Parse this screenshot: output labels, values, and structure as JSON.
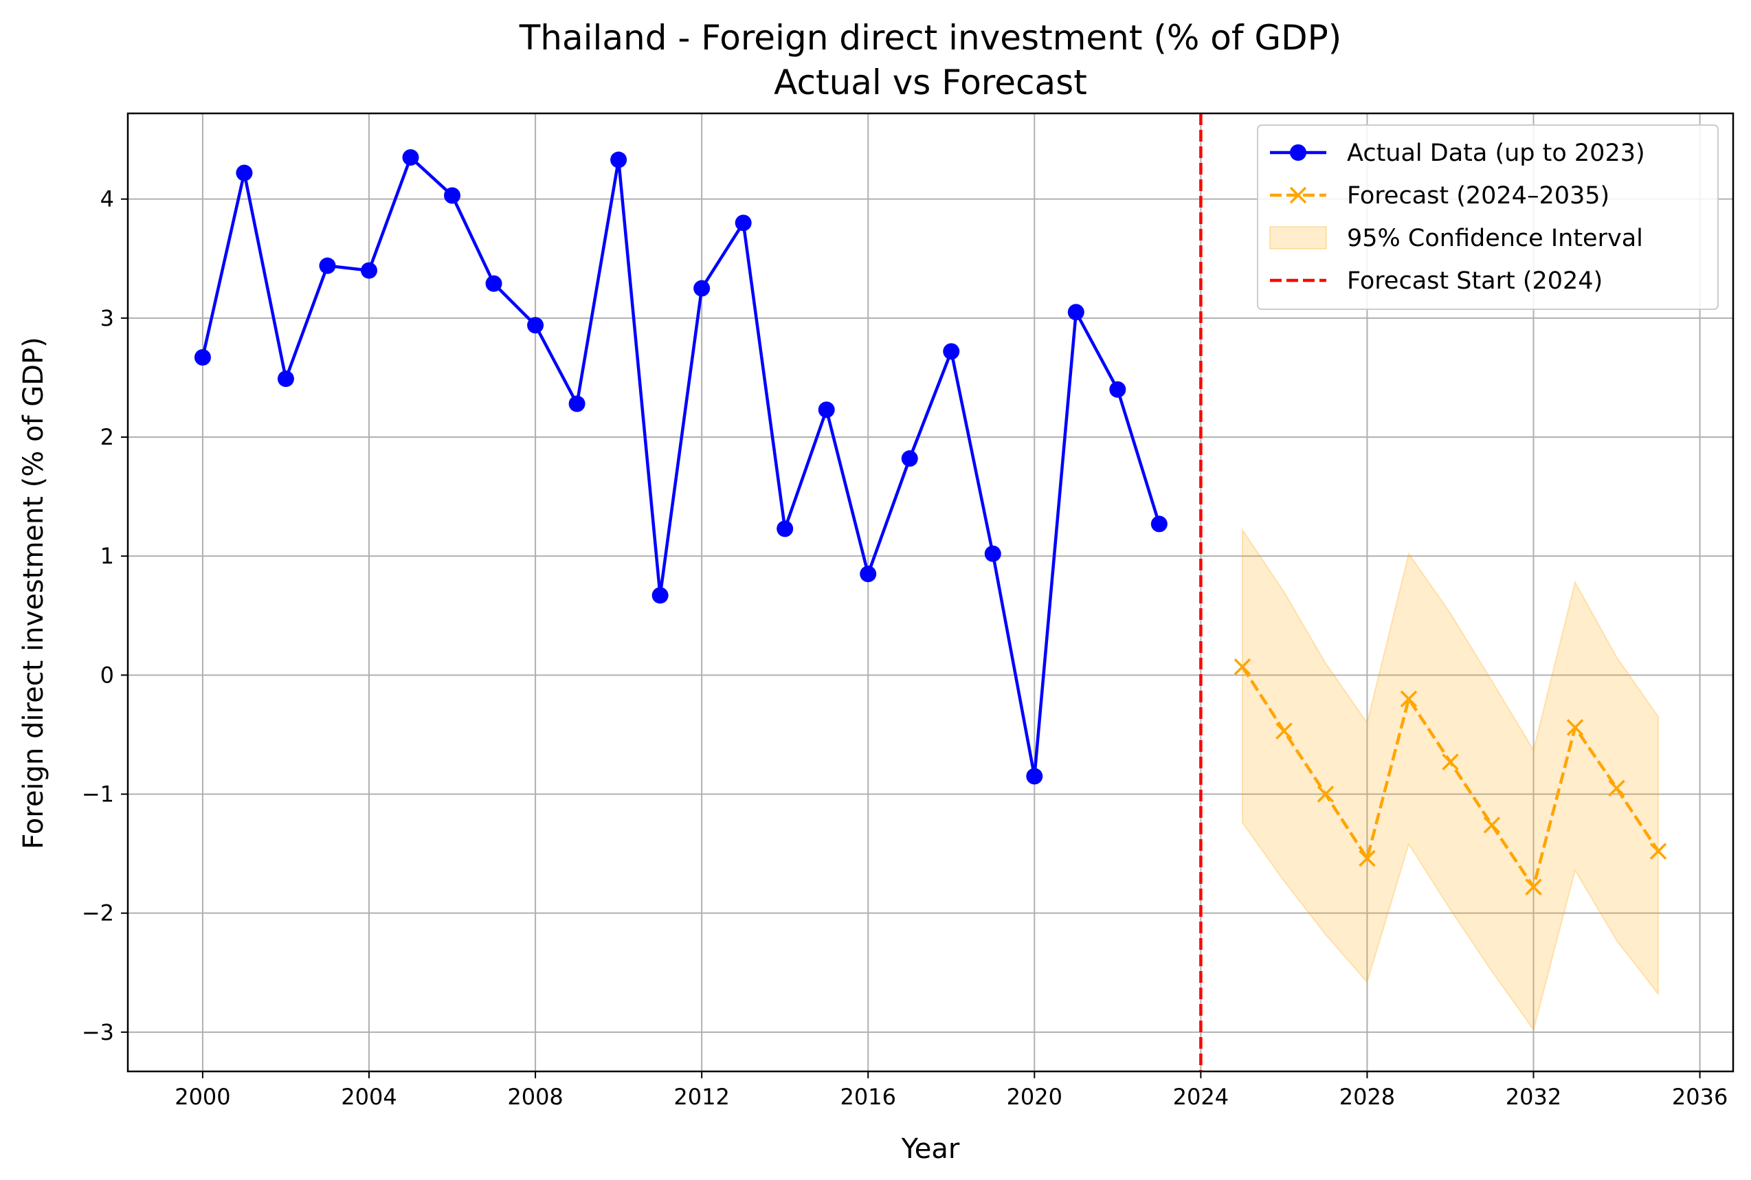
{
  "chart_data": {
    "type": "line",
    "title": "Thailand - Foreign direct investment (% of GDP)",
    "subtitle": "Actual vs Forecast",
    "xlabel": "Year",
    "ylabel": "Foreign direct investment (% of GDP)",
    "xlim": [
      1998.2,
      2036.8
    ],
    "ylim": [
      -3.33,
      4.72
    ],
    "xticks": [
      2000,
      2004,
      2008,
      2012,
      2016,
      2020,
      2024,
      2028,
      2032,
      2036
    ],
    "yticks": [
      -3,
      -2,
      -1,
      0,
      1,
      2,
      3,
      4
    ],
    "grid": true,
    "legend_position": "top-right",
    "series": [
      {
        "name": "Actual Data (up to 2023)",
        "color": "#0000ff",
        "marker": "circle",
        "line_style": "solid",
        "x": [
          2000,
          2001,
          2002,
          2003,
          2004,
          2005,
          2006,
          2007,
          2008,
          2009,
          2010,
          2011,
          2012,
          2013,
          2014,
          2015,
          2016,
          2017,
          2018,
          2019,
          2020,
          2021,
          2022,
          2023
        ],
        "y": [
          2.67,
          4.22,
          2.49,
          3.44,
          3.4,
          4.35,
          4.03,
          3.29,
          2.94,
          2.28,
          4.33,
          0.67,
          3.25,
          3.8,
          1.23,
          2.23,
          0.85,
          1.82,
          2.72,
          1.02,
          -0.85,
          3.05,
          2.4,
          1.27
        ]
      },
      {
        "name": "Forecast (2024–2035)",
        "color": "#ffa500",
        "marker": "x",
        "line_style": "dashed",
        "x": [
          2025,
          2026,
          2027,
          2028,
          2029,
          2030,
          2031,
          2032,
          2033,
          2034,
          2035
        ],
        "y": [
          0.07,
          -0.47,
          -1.0,
          -1.54,
          -0.2,
          -0.73,
          -1.26,
          -1.78,
          -0.44,
          -0.95,
          -1.48
        ]
      }
    ],
    "confidence_interval": {
      "name": "95% Confidence Interval",
      "color": "#ffa500",
      "x": [
        2025,
        2026,
        2027,
        2028,
        2029,
        2030,
        2031,
        2032,
        2033,
        2034,
        2035
      ],
      "lower": [
        -1.24,
        -1.73,
        -2.18,
        -2.58,
        -1.42,
        -1.97,
        -2.49,
        -2.98,
        -1.64,
        -2.23,
        -2.68
      ],
      "upper": [
        1.22,
        0.7,
        0.1,
        -0.4,
        1.02,
        0.52,
        -0.05,
        -0.63,
        0.78,
        0.15,
        -0.35
      ]
    },
    "vline": {
      "name": "Forecast Start (2024)",
      "x": 2024,
      "color": "#ff0000",
      "line_style": "dashed"
    }
  }
}
